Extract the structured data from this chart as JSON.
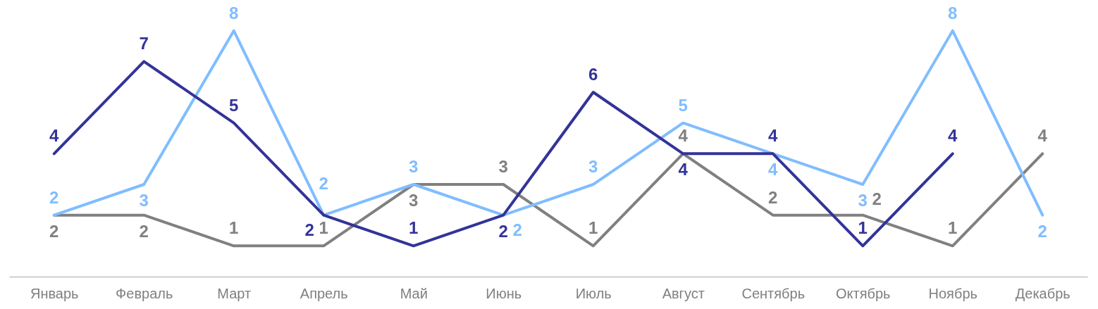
{
  "chart_data": {
    "type": "line",
    "categories": [
      "Январь",
      "Февраль",
      "Март",
      "Апрель",
      "Май",
      "Июнь",
      "Июль",
      "Август",
      "Сентябрь",
      "Октябрь",
      "Ноябрь",
      "Декабрь"
    ],
    "series": [
      {
        "color": "#333399",
        "values": [
          4,
          7,
          5,
          2,
          1,
          2,
          6,
          4,
          4,
          1,
          4,
          null
        ]
      },
      {
        "color": "#80bdff",
        "values": [
          2,
          3,
          8,
          2,
          3,
          2,
          3,
          5,
          4,
          3,
          8,
          2
        ]
      },
      {
        "color": "#808080",
        "values": [
          2,
          2,
          1,
          1,
          3,
          3,
          1,
          4,
          2,
          2,
          1,
          4
        ]
      }
    ],
    "ylim": [
      0,
      9
    ],
    "data_labels": true,
    "grid": false,
    "legend": false,
    "marker": "none",
    "line_style": "solid",
    "tick_labels": "x"
  }
}
